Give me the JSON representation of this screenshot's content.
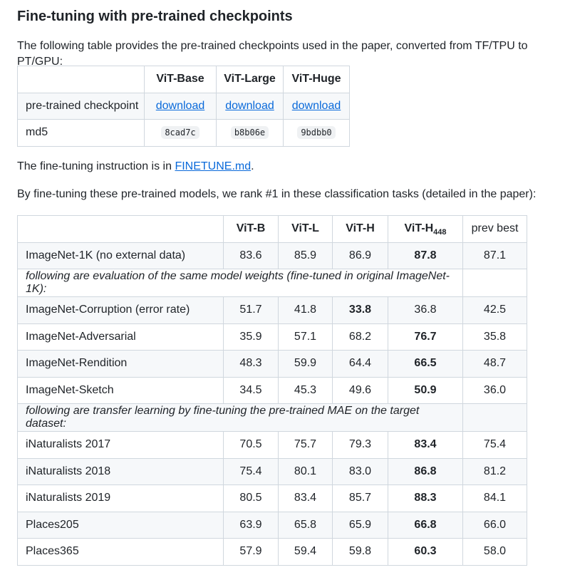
{
  "heading": "Fine-tuning with pre-trained checkpoints",
  "intro": "The following table provides the pre-trained checkpoints used in the paper, converted from TF/TPU to PT/GPU:",
  "checkpoints": {
    "headers": [
      "",
      "ViT-Base",
      "ViT-Large",
      "ViT-Huge"
    ],
    "row_checkpoint": {
      "label": "pre-trained checkpoint",
      "links": [
        "download",
        "download",
        "download"
      ]
    },
    "row_md5": {
      "label": "md5",
      "values": [
        "8cad7c",
        "b8b06e",
        "9bdbb0"
      ]
    }
  },
  "finetune": {
    "prefix": "The fine-tuning instruction is in ",
    "link": "FINETUNE.md",
    "suffix": "."
  },
  "rank_text": "By fine-tuning these pre-trained models, we rank #1 in these classification tasks (detailed in the paper):",
  "results": {
    "headers": [
      "",
      "ViT-B",
      "ViT-L",
      "ViT-H",
      "ViT-H",
      "prev best"
    ],
    "header_sub": "448",
    "section1_note": "following are evaluation of the same model weights (fine-tuned in original ImageNet-1K):",
    "section2_note": "following are transfer learning by fine-tuning the pre-trained MAE on the target dataset:",
    "rows": [
      [
        "ImageNet-1K (no external data)",
        "83.6",
        "85.9",
        "86.9",
        "87.8",
        "87.1"
      ],
      [
        "ImageNet-Corruption (error rate)",
        "51.7",
        "41.8",
        "33.8",
        "36.8",
        "42.5"
      ],
      [
        "ImageNet-Adversarial",
        "35.9",
        "57.1",
        "68.2",
        "76.7",
        "35.8"
      ],
      [
        "ImageNet-Rendition",
        "48.3",
        "59.9",
        "64.4",
        "66.5",
        "48.7"
      ],
      [
        "ImageNet-Sketch",
        "34.5",
        "45.3",
        "49.6",
        "50.9",
        "36.0"
      ],
      [
        "iNaturalists 2017",
        "70.5",
        "75.7",
        "79.3",
        "83.4",
        "75.4"
      ],
      [
        "iNaturalists 2018",
        "75.4",
        "80.1",
        "83.0",
        "86.8",
        "81.2"
      ],
      [
        "iNaturalists 2019",
        "80.5",
        "83.4",
        "85.7",
        "88.3",
        "84.1"
      ],
      [
        "Places205",
        "63.9",
        "65.8",
        "65.9",
        "66.8",
        "66.0"
      ],
      [
        "Places365",
        "57.9",
        "59.4",
        "59.8",
        "60.3",
        "58.0"
      ]
    ]
  },
  "colors": {
    "link": "#0969da",
    "border": "#d0d7de",
    "stripe": "#f6f8fa"
  }
}
